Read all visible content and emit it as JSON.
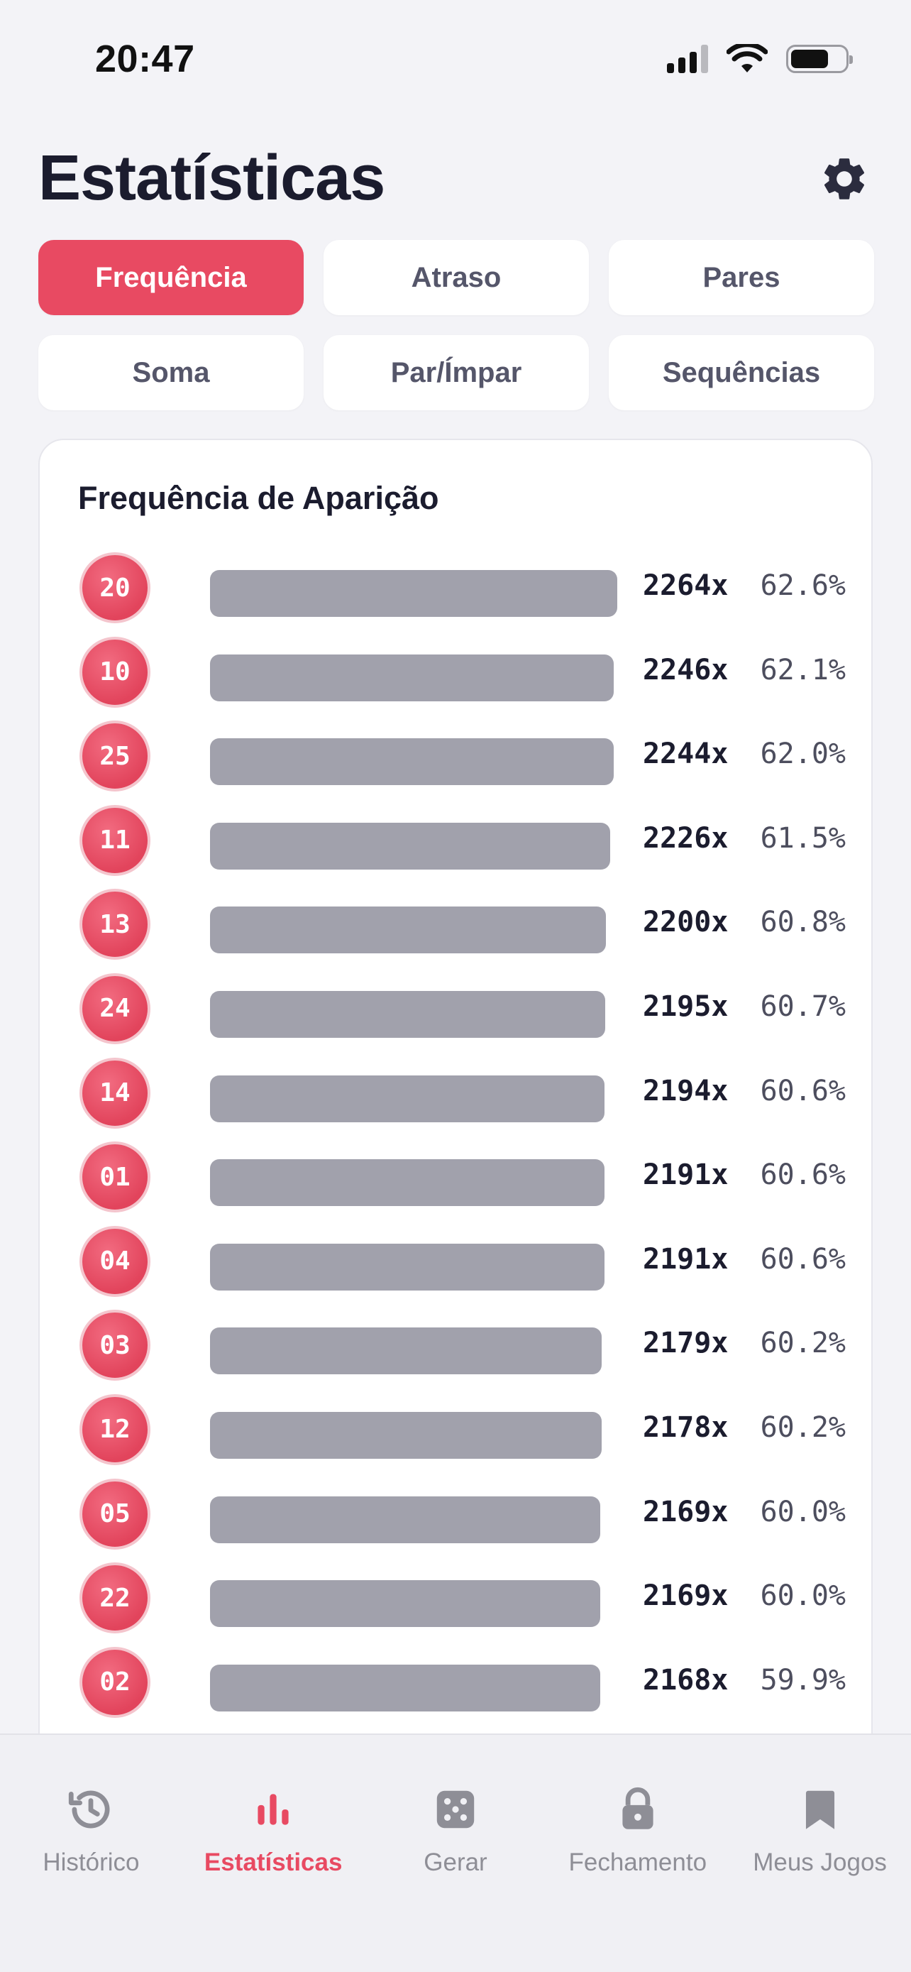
{
  "status": {
    "time": "20:47"
  },
  "header": {
    "title": "Estatísticas"
  },
  "tabs": [
    {
      "label": "Frequência",
      "active": true
    },
    {
      "label": "Atraso",
      "active": false
    },
    {
      "label": "Pares",
      "active": false
    },
    {
      "label": "Soma",
      "active": false
    },
    {
      "label": "Par/Ímpar",
      "active": false
    },
    {
      "label": "Sequências",
      "active": false
    }
  ],
  "card": {
    "title": "Frequência de Aparição",
    "rows": [
      {
        "number": "20",
        "count": "2264x",
        "percent": "62.6%",
        "fraction": 1.0
      },
      {
        "number": "10",
        "count": "2246x",
        "percent": "62.1%",
        "fraction": 0.992
      },
      {
        "number": "25",
        "count": "2244x",
        "percent": "62.0%",
        "fraction": 0.991
      },
      {
        "number": "11",
        "count": "2226x",
        "percent": "61.5%",
        "fraction": 0.983
      },
      {
        "number": "13",
        "count": "2200x",
        "percent": "60.8%",
        "fraction": 0.972
      },
      {
        "number": "24",
        "count": "2195x",
        "percent": "60.7%",
        "fraction": 0.97
      },
      {
        "number": "14",
        "count": "2194x",
        "percent": "60.6%",
        "fraction": 0.969
      },
      {
        "number": "01",
        "count": "2191x",
        "percent": "60.6%",
        "fraction": 0.968
      },
      {
        "number": "04",
        "count": "2191x",
        "percent": "60.6%",
        "fraction": 0.968
      },
      {
        "number": "03",
        "count": "2179x",
        "percent": "60.2%",
        "fraction": 0.962
      },
      {
        "number": "12",
        "count": "2178x",
        "percent": "60.2%",
        "fraction": 0.962
      },
      {
        "number": "05",
        "count": "2169x",
        "percent": "60.0%",
        "fraction": 0.958
      },
      {
        "number": "22",
        "count": "2169x",
        "percent": "60.0%",
        "fraction": 0.958
      },
      {
        "number": "02",
        "count": "2168x",
        "percent": "59.9%",
        "fraction": 0.958
      }
    ]
  },
  "nav": [
    {
      "label": "Histórico",
      "icon": "history-icon",
      "active": false
    },
    {
      "label": "Estatísticas",
      "icon": "bar-chart-icon",
      "active": true
    },
    {
      "label": "Gerar",
      "icon": "dice-icon",
      "active": false
    },
    {
      "label": "Fechamento",
      "icon": "lock-icon",
      "active": false
    },
    {
      "label": "Meus Jogos",
      "icon": "bookmark-icon",
      "active": false
    }
  ],
  "colors": {
    "accent": "#e84a62",
    "bar": "#a1a1ac",
    "background": "#f3f3f7",
    "inactive": "#8e8e96"
  }
}
